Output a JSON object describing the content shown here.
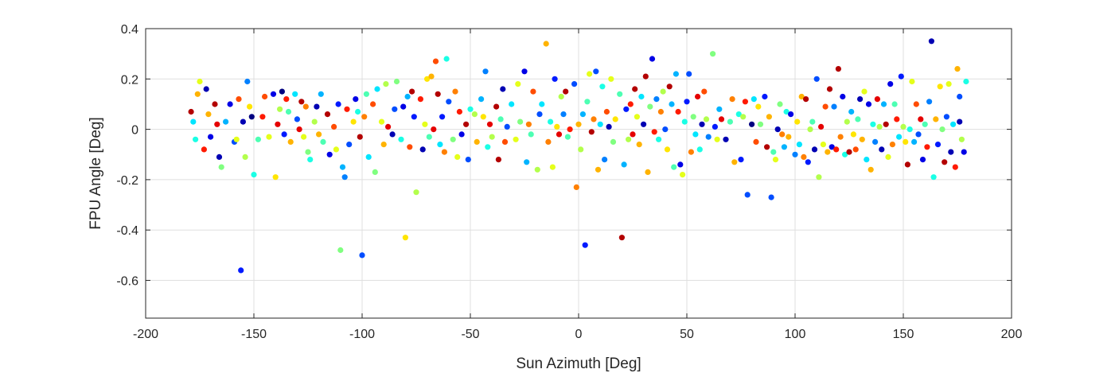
{
  "chart_data": {
    "type": "scatter",
    "xlabel": "Sun Azimuth [Deg]",
    "ylabel": "FPU Angle [Deg]",
    "xlim": [
      -200,
      200
    ],
    "ylim": [
      -0.75,
      0.4
    ],
    "xticks": [
      -200,
      -150,
      -100,
      -50,
      0,
      50,
      100,
      150,
      200
    ],
    "yticks": [
      -0.6,
      -0.4,
      -0.2,
      0,
      0.2,
      0.4
    ],
    "xtick_labels": [
      "-200",
      "-150",
      "-100",
      "-50",
      "0",
      "50",
      "100",
      "150",
      "200"
    ],
    "ytick_labels": [
      "-0.6",
      "-0.4",
      "-0.2",
      "0",
      "0.2",
      "0.4"
    ],
    "grid": true,
    "colormap": "jet",
    "marker": "filled-circle",
    "points": [
      [
        -179,
        0.07,
        0.95
      ],
      [
        -178,
        0.03,
        0.35
      ],
      [
        -177,
        -0.04,
        0.4
      ],
      [
        -176,
        0.14,
        0.7
      ],
      [
        -175,
        0.19,
        0.6
      ],
      [
        -173,
        -0.08,
        0.85
      ],
      [
        -172,
        0.16,
        0.05
      ],
      [
        -171,
        0.06,
        0.7
      ],
      [
        -170,
        -0.03,
        0.1
      ],
      [
        -168,
        0.1,
        0.95
      ],
      [
        -167,
        0.02,
        0.9
      ],
      [
        -166,
        -0.11,
        0.05
      ],
      [
        -165,
        -0.15,
        0.5
      ],
      [
        -163,
        0.03,
        0.3
      ],
      [
        -161,
        0.1,
        0.1
      ],
      [
        -159,
        -0.05,
        0.2
      ],
      [
        -158,
        -0.04,
        0.6
      ],
      [
        -157,
        0.12,
        0.8
      ],
      [
        -156,
        -0.56,
        0.15
      ],
      [
        -155,
        0.03,
        0.05
      ],
      [
        -154,
        -0.11,
        0.55
      ],
      [
        -153,
        0.19,
        0.25
      ],
      [
        -152,
        0.09,
        0.65
      ],
      [
        -151,
        0.05,
        0.0
      ],
      [
        -150,
        -0.18,
        0.4
      ],
      [
        -148,
        -0.04,
        0.45
      ],
      [
        -146,
        0.05,
        0.85
      ],
      [
        -145,
        0.13,
        0.8
      ],
      [
        -143,
        -0.03,
        0.6
      ],
      [
        -141,
        0.14,
        0.1
      ],
      [
        -140,
        -0.19,
        0.65
      ],
      [
        -139,
        0.02,
        0.9
      ],
      [
        -138,
        0.08,
        0.55
      ],
      [
        -137,
        0.15,
        0.0
      ],
      [
        -136,
        -0.02,
        0.15
      ],
      [
        -135,
        0.12,
        0.85
      ],
      [
        -134,
        0.07,
        0.45
      ],
      [
        -133,
        -0.05,
        0.7
      ],
      [
        -131,
        0.14,
        0.35
      ],
      [
        -130,
        0.04,
        0.2
      ],
      [
        -129,
        0.0,
        0.9
      ],
      [
        -128,
        0.11,
        0.95
      ],
      [
        -127,
        -0.03,
        0.6
      ],
      [
        -126,
        0.09,
        0.75
      ],
      [
        -125,
        -0.09,
        0.5
      ],
      [
        -124,
        -0.12,
        0.4
      ],
      [
        -122,
        0.03,
        0.55
      ],
      [
        -121,
        0.09,
        0.05
      ],
      [
        -120,
        -0.02,
        0.7
      ],
      [
        -119,
        0.14,
        0.3
      ],
      [
        -118,
        -0.05,
        0.45
      ],
      [
        -116,
        0.06,
        0.95
      ],
      [
        -115,
        -0.1,
        0.1
      ],
      [
        -113,
        0.01,
        0.8
      ],
      [
        -112,
        -0.08,
        0.6
      ],
      [
        -111,
        0.1,
        0.15
      ],
      [
        -110,
        -0.48,
        0.5
      ],
      [
        -109,
        -0.15,
        0.3
      ],
      [
        -108,
        -0.19,
        0.25
      ],
      [
        -107,
        0.08,
        0.85
      ],
      [
        -106,
        -0.06,
        0.2
      ],
      [
        -104,
        0.03,
        0.65
      ],
      [
        -103,
        0.12,
        0.1
      ],
      [
        -102,
        0.07,
        0.4
      ],
      [
        -101,
        -0.03,
        0.95
      ],
      [
        -100,
        -0.5,
        0.2
      ],
      [
        -99,
        0.05,
        0.75
      ],
      [
        -98,
        0.14,
        0.45
      ],
      [
        -97,
        -0.11,
        0.35
      ],
      [
        -95,
        0.1,
        0.8
      ],
      [
        -94,
        -0.17,
        0.5
      ],
      [
        -93,
        0.16,
        0.35
      ],
      [
        -91,
        0.03,
        0.6
      ],
      [
        -90,
        -0.06,
        0.7
      ],
      [
        -89,
        0.18,
        0.55
      ],
      [
        -88,
        0.01,
        0.9
      ],
      [
        -86,
        -0.02,
        0.05
      ],
      [
        -85,
        0.08,
        0.2
      ],
      [
        -84,
        0.19,
        0.5
      ],
      [
        -82,
        -0.04,
        0.4
      ],
      [
        -81,
        0.09,
        0.1
      ],
      [
        -80,
        -0.43,
        0.65
      ],
      [
        -79,
        0.13,
        0.3
      ],
      [
        -78,
        -0.07,
        0.8
      ],
      [
        -77,
        0.15,
        0.95
      ],
      [
        -76,
        0.05,
        0.15
      ],
      [
        -75,
        -0.25,
        0.55
      ],
      [
        -73,
        0.12,
        0.85
      ],
      [
        -72,
        -0.08,
        0.05
      ],
      [
        -71,
        0.02,
        0.6
      ],
      [
        -70,
        0.2,
        0.65
      ],
      [
        -69,
        -0.03,
        0.45
      ],
      [
        -68,
        0.21,
        0.7
      ],
      [
        -67,
        0.0,
        0.9
      ],
      [
        -66,
        0.27,
        0.8
      ],
      [
        -65,
        0.14,
        0.95
      ],
      [
        -64,
        -0.06,
        0.35
      ],
      [
        -63,
        0.05,
        0.15
      ],
      [
        -62,
        -0.09,
        0.75
      ],
      [
        -61,
        0.28,
        0.4
      ],
      [
        -60,
        0.11,
        0.2
      ],
      [
        -58,
        -0.04,
        0.5
      ],
      [
        -57,
        0.15,
        0.75
      ],
      [
        -56,
        -0.11,
        0.6
      ],
      [
        -55,
        0.07,
        0.85
      ],
      [
        -54,
        -0.02,
        0.1
      ],
      [
        -52,
        0.02,
        0.95
      ],
      [
        -51,
        -0.12,
        0.2
      ],
      [
        -50,
        0.08,
        0.4
      ],
      [
        -48,
        0.06,
        0.55
      ],
      [
        -47,
        -0.05,
        0.7
      ],
      [
        -45,
        0.12,
        0.3
      ],
      [
        -44,
        0.05,
        0.65
      ],
      [
        -43,
        0.23,
        0.25
      ],
      [
        -42,
        -0.07,
        0.4
      ],
      [
        -41,
        0.02,
        0.9
      ],
      [
        -40,
        -0.03,
        0.55
      ],
      [
        -38,
        0.09,
        0.95
      ],
      [
        -37,
        -0.12,
        0.95
      ],
      [
        -36,
        0.04,
        0.45
      ],
      [
        -35,
        0.16,
        0.05
      ],
      [
        -34,
        -0.05,
        0.8
      ],
      [
        -33,
        0.01,
        0.2
      ],
      [
        -31,
        0.1,
        0.35
      ],
      [
        -29,
        -0.04,
        0.6
      ],
      [
        -28,
        0.18,
        0.6
      ],
      [
        -27,
        0.03,
        0.5
      ],
      [
        -25,
        0.23,
        0.1
      ],
      [
        -24,
        -0.13,
        0.3
      ],
      [
        -23,
        0.02,
        0.75
      ],
      [
        -22,
        -0.02,
        0.45
      ],
      [
        -21,
        0.15,
        0.8
      ],
      [
        -19,
        -0.16,
        0.55
      ],
      [
        -18,
        0.06,
        0.2
      ],
      [
        -17,
        0.1,
        0.35
      ],
      [
        -15,
        0.34,
        0.7
      ],
      [
        -14,
        -0.05,
        0.75
      ],
      [
        -13,
        0.03,
        0.4
      ],
      [
        -12,
        -0.15,
        0.6
      ],
      [
        -11,
        0.2,
        0.15
      ],
      [
        -10,
        0.01,
        0.65
      ],
      [
        -9,
        -0.02,
        0.9
      ],
      [
        -8,
        0.13,
        0.55
      ],
      [
        -7,
        0.06,
        0.25
      ],
      [
        -6,
        0.15,
        0.95
      ],
      [
        -5,
        -0.03,
        0.45
      ],
      [
        -4,
        0.0,
        0.85
      ],
      [
        -2,
        0.18,
        0.2
      ],
      [
        -1,
        -0.23,
        0.75
      ],
      [
        0,
        0.02,
        0.7
      ],
      [
        1,
        -0.08,
        0.55
      ],
      [
        2,
        0.06,
        0.3
      ],
      [
        3,
        -0.46,
        0.15
      ],
      [
        4,
        0.11,
        0.45
      ],
      [
        5,
        0.22,
        0.6
      ],
      [
        6,
        -0.01,
        0.95
      ],
      [
        7,
        0.04,
        0.75
      ],
      [
        8,
        0.23,
        0.2
      ],
      [
        9,
        -0.16,
        0.7
      ],
      [
        10,
        0.02,
        0.35
      ],
      [
        11,
        0.17,
        0.4
      ],
      [
        12,
        -0.12,
        0.25
      ],
      [
        13,
        0.07,
        0.8
      ],
      [
        14,
        0.01,
        0.05
      ],
      [
        15,
        0.2,
        0.6
      ],
      [
        16,
        -0.05,
        0.5
      ],
      [
        17,
        0.04,
        0.65
      ],
      [
        19,
        0.14,
        0.45
      ],
      [
        20,
        -0.43,
        0.95
      ],
      [
        21,
        -0.14,
        0.3
      ],
      [
        22,
        0.08,
        0.15
      ],
      [
        23,
        -0.04,
        0.55
      ],
      [
        24,
        0.1,
        0.85
      ],
      [
        25,
        -0.02,
        0.9
      ],
      [
        26,
        0.16,
        0.95
      ],
      [
        27,
        0.05,
        0.6
      ],
      [
        28,
        -0.06,
        0.7
      ],
      [
        29,
        0.13,
        0.35
      ],
      [
        30,
        0.02,
        0.05
      ],
      [
        31,
        0.21,
        0.95
      ],
      [
        32,
        -0.17,
        0.7
      ],
      [
        33,
        0.09,
        0.5
      ],
      [
        34,
        0.28,
        0.1
      ],
      [
        35,
        -0.01,
        0.85
      ],
      [
        36,
        0.12,
        0.25
      ],
      [
        37,
        -0.04,
        0.4
      ],
      [
        38,
        0.07,
        0.75
      ],
      [
        39,
        0.15,
        0.55
      ],
      [
        40,
        0.0,
        0.2
      ],
      [
        41,
        -0.08,
        0.65
      ],
      [
        42,
        0.17,
        0.95
      ],
      [
        43,
        0.1,
        0.3
      ],
      [
        44,
        -0.15,
        0.45
      ],
      [
        45,
        0.22,
        0.3
      ],
      [
        46,
        0.07,
        0.85
      ],
      [
        47,
        -0.14,
        0.1
      ],
      [
        48,
        -0.18,
        0.6
      ],
      [
        49,
        0.03,
        0.4
      ],
      [
        50,
        0.11,
        0.15
      ],
      [
        51,
        0.22,
        0.2
      ],
      [
        52,
        -0.09,
        0.75
      ],
      [
        53,
        0.05,
        0.5
      ],
      [
        54,
        -0.02,
        0.35
      ],
      [
        55,
        0.13,
        0.9
      ],
      [
        56,
        -0.08,
        0.4
      ],
      [
        57,
        0.02,
        0.05
      ],
      [
        58,
        0.15,
        0.8
      ],
      [
        59,
        0.04,
        0.55
      ],
      [
        60,
        -0.03,
        0.25
      ],
      [
        62,
        0.3,
        0.5
      ],
      [
        63,
        0.01,
        0.15
      ],
      [
        64,
        -0.04,
        0.6
      ],
      [
        65,
        0.08,
        0.3
      ],
      [
        66,
        0.04,
        0.9
      ],
      [
        68,
        -0.04,
        0.05
      ],
      [
        70,
        0.03,
        0.45
      ],
      [
        71,
        0.12,
        0.75
      ],
      [
        72,
        -0.13,
        0.7
      ],
      [
        74,
        0.06,
        0.4
      ],
      [
        75,
        -0.12,
        0.15
      ],
      [
        76,
        0.05,
        0.55
      ],
      [
        77,
        0.11,
        0.85
      ],
      [
        78,
        -0.26,
        0.2
      ],
      [
        80,
        0.02,
        0.0
      ],
      [
        81,
        0.12,
        0.35
      ],
      [
        82,
        -0.05,
        0.8
      ],
      [
        83,
        0.09,
        0.65
      ],
      [
        84,
        0.02,
        0.5
      ],
      [
        86,
        0.13,
        0.15
      ],
      [
        87,
        -0.07,
        0.95
      ],
      [
        88,
        0.05,
        0.7
      ],
      [
        89,
        -0.27,
        0.2
      ],
      [
        90,
        -0.09,
        0.45
      ],
      [
        91,
        -0.12,
        0.6
      ],
      [
        92,
        0.0,
        0.05
      ],
      [
        93,
        0.1,
        0.5
      ],
      [
        94,
        -0.02,
        0.75
      ],
      [
        95,
        -0.07,
        0.3
      ],
      [
        96,
        0.07,
        0.4
      ],
      [
        97,
        -0.03,
        0.7
      ],
      [
        98,
        0.06,
        0.1
      ],
      [
        100,
        -0.1,
        0.25
      ],
      [
        101,
        0.03,
        0.65
      ],
      [
        102,
        -0.06,
        0.35
      ],
      [
        103,
        0.13,
        0.7
      ],
      [
        104,
        -0.11,
        0.75
      ],
      [
        105,
        0.12,
        0.95
      ],
      [
        106,
        -0.13,
        0.15
      ],
      [
        107,
        0.0,
        0.55
      ],
      [
        108,
        0.03,
        0.45
      ],
      [
        109,
        -0.08,
        0.05
      ],
      [
        110,
        0.2,
        0.2
      ],
      [
        111,
        -0.19,
        0.55
      ],
      [
        112,
        0.01,
        0.9
      ],
      [
        113,
        -0.06,
        0.6
      ],
      [
        114,
        0.09,
        0.8
      ],
      [
        115,
        -0.09,
        0.7
      ],
      [
        116,
        0.16,
        0.95
      ],
      [
        117,
        -0.07,
        0.1
      ],
      [
        118,
        0.09,
        0.25
      ],
      [
        119,
        -0.08,
        0.85
      ],
      [
        120,
        0.24,
        0.95
      ],
      [
        121,
        -0.03,
        0.75
      ],
      [
        122,
        0.13,
        0.1
      ],
      [
        123,
        -0.1,
        0.4
      ],
      [
        124,
        0.03,
        0.55
      ],
      [
        125,
        -0.09,
        0.95
      ],
      [
        126,
        0.07,
        0.3
      ],
      [
        127,
        -0.02,
        0.65
      ],
      [
        128,
        -0.08,
        0.8
      ],
      [
        129,
        0.04,
        0.45
      ],
      [
        130,
        0.12,
        0.05
      ],
      [
        131,
        -0.04,
        0.7
      ],
      [
        132,
        0.15,
        0.6
      ],
      [
        133,
        -0.12,
        0.35
      ],
      [
        134,
        0.1,
        0.1
      ],
      [
        135,
        -0.16,
        0.7
      ],
      [
        136,
        0.02,
        0.4
      ],
      [
        137,
        -0.05,
        0.25
      ],
      [
        138,
        0.12,
        0.9
      ],
      [
        139,
        0.01,
        0.55
      ],
      [
        140,
        -0.08,
        0.05
      ],
      [
        141,
        0.1,
        0.3
      ],
      [
        142,
        0.02,
        0.95
      ],
      [
        143,
        -0.11,
        0.6
      ],
      [
        144,
        0.18,
        0.1
      ],
      [
        145,
        -0.06,
        0.75
      ],
      [
        146,
        0.1,
        0.45
      ],
      [
        147,
        0.04,
        0.85
      ],
      [
        148,
        -0.03,
        0.35
      ],
      [
        149,
        0.21,
        0.15
      ],
      [
        150,
        0.01,
        0.55
      ],
      [
        151,
        -0.05,
        0.65
      ],
      [
        152,
        -0.14,
        0.95
      ],
      [
        153,
        0.0,
        0.4
      ],
      [
        154,
        0.19,
        0.6
      ],
      [
        155,
        -0.05,
        0.3
      ],
      [
        156,
        0.1,
        0.8
      ],
      [
        157,
        -0.02,
        0.2
      ],
      [
        158,
        0.04,
        0.9
      ],
      [
        159,
        -0.12,
        0.1
      ],
      [
        160,
        0.02,
        0.45
      ],
      [
        161,
        -0.07,
        0.85
      ],
      [
        162,
        0.11,
        0.25
      ],
      [
        163,
        0.35,
        0.05
      ],
      [
        164,
        -0.19,
        0.4
      ],
      [
        165,
        0.04,
        0.7
      ],
      [
        166,
        -0.06,
        0.15
      ],
      [
        167,
        0.17,
        0.65
      ],
      [
        168,
        0.0,
        0.5
      ],
      [
        169,
        -0.13,
        0.95
      ],
      [
        170,
        0.05,
        0.2
      ],
      [
        171,
        0.18,
        0.6
      ],
      [
        172,
        -0.09,
        0.05
      ],
      [
        173,
        0.02,
        0.35
      ],
      [
        174,
        -0.15,
        0.85
      ],
      [
        175,
        0.24,
        0.7
      ],
      [
        176,
        0.13,
        0.2
      ],
      [
        177,
        -0.04,
        0.55
      ],
      [
        178,
        -0.09,
        0.1
      ],
      [
        179,
        0.19,
        0.4
      ],
      [
        176,
        0.03,
        0.05
      ]
    ]
  }
}
